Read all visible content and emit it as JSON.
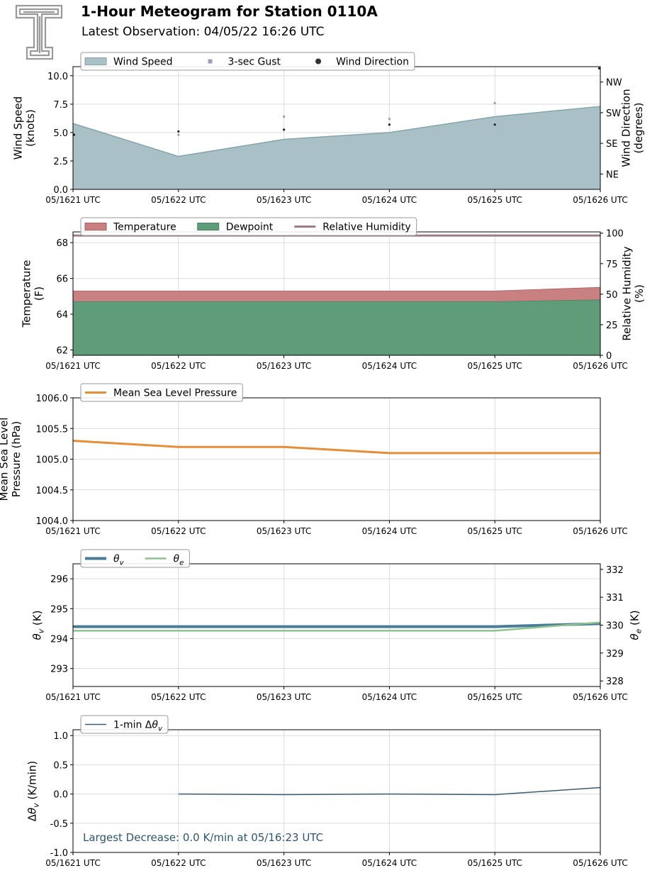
{
  "header": {
    "title": "1-Hour Meteogram for Station 0110A",
    "subtitle": "Latest Observation: 04/05/22 16:26 UTC"
  },
  "colors": {
    "wind_speed": "#a8c0c6",
    "wind_speed_edge": "#85a4ab",
    "gust": "#9e9eb4",
    "direction": "#222222",
    "temperature": "#c98081",
    "dewpoint": "#5f9d79",
    "rh": "#9c7f86",
    "pressure": "#e48f37",
    "theta_v": "#4a7b97",
    "theta_e": "#8fc291",
    "dtheta": "#3e5c6d",
    "annotation": "#2d5670"
  },
  "chart_data": [
    {
      "id": "wind",
      "type": "area",
      "x": [
        "05/1621 UTC",
        "05/1622 UTC",
        "05/1623 UTC",
        "05/1624 UTC",
        "05/1625 UTC",
        "05/1626 UTC"
      ],
      "series": [
        {
          "name": "Wind Speed",
          "values": [
            5.8,
            2.9,
            4.4,
            5.0,
            6.4,
            7.3
          ]
        },
        {
          "name": "3-sec Gust",
          "values": [
            null,
            4.8,
            6.4,
            6.2,
            7.6,
            null
          ]
        },
        {
          "name": "Wind Direction",
          "values": [
            160,
            170,
            175,
            190,
            190,
            355
          ]
        }
      ],
      "ylabel": "Wind Speed\n(knots)",
      "ylabel2": "Wind Direction\n(degrees)",
      "ylim": [
        0,
        10.8
      ],
      "yticks": [
        0.0,
        2.5,
        5.0,
        7.5,
        10.0
      ],
      "ylim2": [
        0,
        360
      ],
      "yticks2": [
        {
          "v": 45,
          "label": "NE"
        },
        {
          "v": 135,
          "label": "SE"
        },
        {
          "v": 225,
          "label": "SW"
        },
        {
          "v": 315,
          "label": "NW"
        }
      ],
      "legend_placement": "top-left",
      "grid": true
    },
    {
      "id": "temp",
      "type": "area",
      "x": [
        "05/1621 UTC",
        "05/1622 UTC",
        "05/1623 UTC",
        "05/1624 UTC",
        "05/1625 UTC",
        "05/1626 UTC"
      ],
      "series": [
        {
          "name": "Temperature",
          "values": [
            65.3,
            65.3,
            65.3,
            65.3,
            65.3,
            65.5
          ]
        },
        {
          "name": "Dewpoint",
          "values": [
            64.7,
            64.7,
            64.7,
            64.7,
            64.7,
            64.8
          ]
        },
        {
          "name": "Relative Humidity",
          "values": [
            98,
            98,
            98,
            98,
            98,
            98
          ]
        }
      ],
      "ylabel": "Temperature\n(F)",
      "ylabel2": "Relative Humidity\n(%)",
      "ylim": [
        61.7,
        68.6
      ],
      "yticks": [
        62,
        64,
        66,
        68
      ],
      "ylim2": [
        0,
        101
      ],
      "yticks2": [
        {
          "v": 0,
          "label": "0"
        },
        {
          "v": 25,
          "label": "25"
        },
        {
          "v": 50,
          "label": "50"
        },
        {
          "v": 75,
          "label": "75"
        },
        {
          "v": 100,
          "label": "100"
        }
      ],
      "legend_placement": "top-left",
      "grid": true
    },
    {
      "id": "pressure",
      "type": "line",
      "x": [
        "05/1621 UTC",
        "05/1622 UTC",
        "05/1623 UTC",
        "05/1624 UTC",
        "05/1625 UTC",
        "05/1626 UTC"
      ],
      "series": [
        {
          "name": "Mean Sea Level Pressure",
          "values": [
            1005.3,
            1005.2,
            1005.2,
            1005.1,
            1005.1,
            1005.1
          ]
        }
      ],
      "ylabel": "Mean Sea Level\nPressure (hPa)",
      "ylim": [
        1004.0,
        1006.0
      ],
      "yticks": [
        1004.0,
        1004.5,
        1005.0,
        1005.5,
        1006.0
      ],
      "legend_placement": "top-left",
      "grid": true
    },
    {
      "id": "theta",
      "type": "line",
      "x": [
        "05/1621 UTC",
        "05/1622 UTC",
        "05/1623 UTC",
        "05/1624 UTC",
        "05/1625 UTC",
        "05/1626 UTC"
      ],
      "series": [
        {
          "name": "θv",
          "values": [
            294.4,
            294.4,
            294.4,
            294.4,
            294.4,
            294.5
          ]
        },
        {
          "name": "θe",
          "values": [
            329.8,
            329.8,
            329.8,
            329.8,
            329.8,
            330.1
          ]
        }
      ],
      "ylabel": "θv (K)",
      "ylabel2": "θe (K)",
      "ylim": [
        292.4,
        296.5
      ],
      "yticks": [
        293,
        294,
        295,
        296
      ],
      "ylim2": [
        327.8,
        332.2
      ],
      "yticks2": [
        {
          "v": 328,
          "label": "328"
        },
        {
          "v": 329,
          "label": "329"
        },
        {
          "v": 330,
          "label": "330"
        },
        {
          "v": 331,
          "label": "331"
        },
        {
          "v": 332,
          "label": "332"
        }
      ],
      "legend_placement": "top-left",
      "grid": true
    },
    {
      "id": "dtheta",
      "type": "line",
      "x": [
        "05/1621 UTC",
        "05/1622 UTC",
        "05/1623 UTC",
        "05/1624 UTC",
        "05/1625 UTC",
        "05/1626 UTC"
      ],
      "series": [
        {
          "name": "1-min Δθv",
          "values": [
            null,
            0.0,
            -0.01,
            0.0,
            -0.01,
            0.11
          ]
        }
      ],
      "ylabel": "Δθv (K/min)",
      "ylim": [
        -1.0,
        1.1
      ],
      "yticks": [
        -1.0,
        -0.5,
        0.0,
        0.5,
        1.0
      ],
      "annotation": "Largest Decrease: 0.0 K/min at 05/16:23 UTC",
      "legend_placement": "top-left",
      "grid": true
    }
  ]
}
